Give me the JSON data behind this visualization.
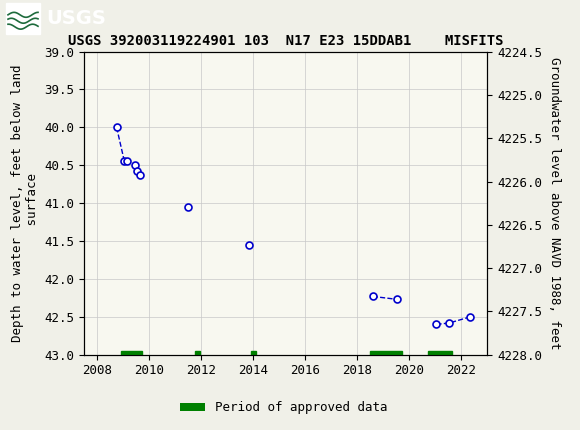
{
  "title": "USGS 392003119224901 103  N17 E23 15DDAB1    MISFITS",
  "ylabel_left": "Depth to water level, feet below land\n surface",
  "ylabel_right": "Groundwater level above NAVD 1988, feet",
  "ylim_left": [
    39.0,
    43.0
  ],
  "ylim_right": [
    4228.0,
    4224.5
  ],
  "xlim": [
    2007.5,
    2023.0
  ],
  "xticks": [
    2008,
    2010,
    2012,
    2014,
    2016,
    2018,
    2020,
    2022
  ],
  "yticks_left": [
    39.0,
    39.5,
    40.0,
    40.5,
    41.0,
    41.5,
    42.0,
    42.5,
    43.0
  ],
  "yticks_right": [
    4228.0,
    4227.5,
    4227.0,
    4226.5,
    4226.0,
    4225.5,
    4225.0,
    4224.5
  ],
  "segments": [
    {
      "x": [
        2008.75,
        2009.05,
        2009.15,
        2009.45,
        2009.55,
        2009.65
      ],
      "y": [
        40.0,
        40.45,
        40.45,
        40.5,
        40.58,
        40.63
      ]
    },
    {
      "x": [
        2011.5
      ],
      "y": [
        41.05
      ]
    },
    {
      "x": [
        2013.85
      ],
      "y": [
        41.55
      ]
    },
    {
      "x": [
        2018.6,
        2019.55
      ],
      "y": [
        42.23,
        42.27
      ]
    },
    {
      "x": [
        2021.05,
        2021.55,
        2022.35
      ],
      "y": [
        42.6,
        42.58,
        42.5
      ]
    }
  ],
  "line_color": "#0000CC",
  "marker_facecolor": "#ffffff",
  "marker_edgecolor": "#0000CC",
  "marker_size": 5,
  "line_style": "--",
  "line_width": 1.0,
  "approved_periods": [
    [
      2008.9,
      2009.72
    ],
    [
      2011.78,
      2011.95
    ],
    [
      2013.93,
      2014.1
    ],
    [
      2018.5,
      2019.72
    ],
    [
      2020.72,
      2021.65
    ]
  ],
  "approved_color": "#008000",
  "approved_bar_y_center": 43.0,
  "approved_bar_height": 0.1,
  "header_bg": "#1e6b3c",
  "header_text": "#ffffff",
  "plot_bg": "#f8f8f0",
  "outer_bg": "#f0f0e8",
  "grid_color": "#c8c8c8",
  "tick_fs": 9,
  "label_fs": 9,
  "title_fs": 10,
  "legend_fs": 9
}
